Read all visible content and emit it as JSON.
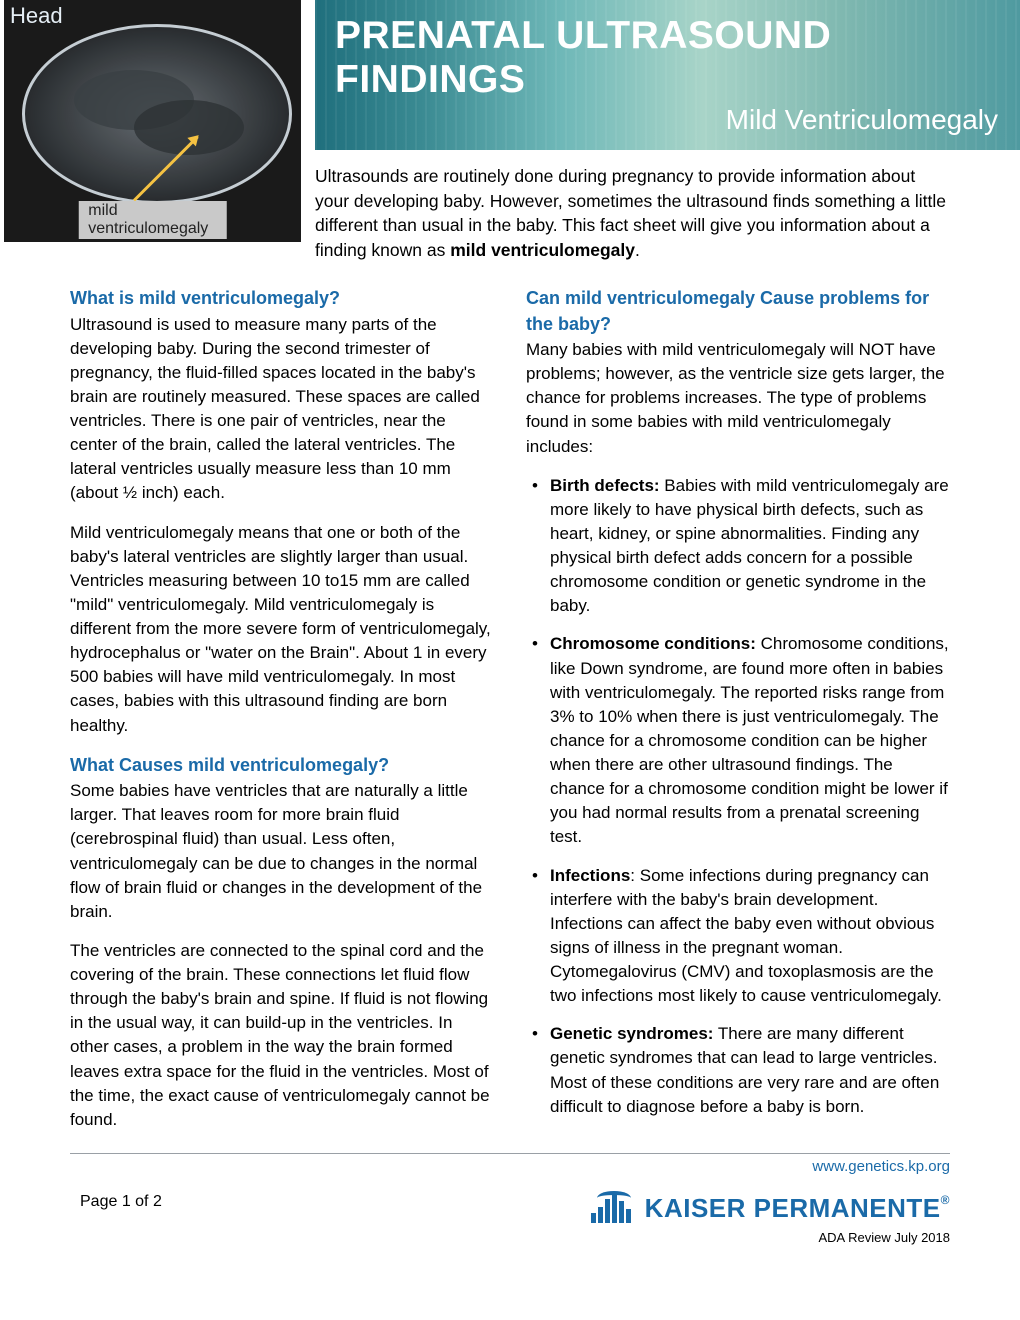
{
  "ultrasound": {
    "head_label": "Head",
    "caption": "mild ventriculomegaly"
  },
  "banner": {
    "title": "PRENATAL ULTRASOUND FINDINGS",
    "subtitle": "Mild Ventriculomegaly",
    "gradient_colors": [
      "#1f6f7d",
      "#3a8a92",
      "#6fb8b8",
      "#a8d4c8",
      "#7fb8b0",
      "#4f9aa0"
    ],
    "title_color": "#ffffff",
    "title_fontsize": 39,
    "subtitle_fontsize": 28
  },
  "intro": {
    "text_before_bold": "Ultrasounds are routinely done during pregnancy to provide information about your developing baby. However, sometimes the ultrasound finds something a little different than usual in the baby. This fact sheet will give you information about a finding known as ",
    "bold": "mild ventriculomegaly",
    "after": "."
  },
  "colors": {
    "heading": "#1a6aa8",
    "body_text": "#000000",
    "background": "#ffffff",
    "rule": "#9aa0a6",
    "logo": "#1a6aa8"
  },
  "typography": {
    "body_fontsize": 17,
    "heading_fontsize": 18,
    "line_height": 1.42
  },
  "left": {
    "h1": "What is mild ventriculomegaly?",
    "p1": "Ultrasound is used to measure many parts of the developing baby. During the second trimester of pregnancy, the fluid-filled spaces located in the baby's brain are routinely measured.  These spaces are called ventricles. There is one pair of ventricles, near the center of the brain, called the lateral ventricles. The lateral ventricles usually measure less than 10 mm (about ½ inch) each.",
    "p2": "Mild ventriculomegaly means that one or both of the baby's lateral ventricles are slightly larger than usual. Ventricles measuring between 10 to15 mm are called \"mild\" ventriculomegaly. Mild ventriculomegaly is different from the more severe form of ventriculomegaly, hydrocephalus or \"water on the Brain\".  About 1 in every 500 babies will have mild ventriculomegaly. In most cases, babies with this ultrasound finding are born healthy.",
    "h2": "What Causes mild ventriculomegaly?",
    "p3": "Some babies have ventricles that are naturally a little larger. That leaves room for more brain fluid (cerebrospinal fluid) than usual.  Less often, ventriculomegaly can be due to changes in the normal flow of brain fluid or changes in the development of the brain.",
    "p4": "The ventricles are connected to the spinal cord and the covering of the brain. These connections let fluid flow through the baby's brain and spine. If fluid is not flowing in the usual way, it can build-up in the ventricles. In other cases, a problem in the way the brain formed leaves extra space for the fluid in the ventricles. Most of the time, the exact cause of ventriculomegaly cannot be found."
  },
  "right": {
    "h1": "Can mild ventriculomegaly Cause problems for the baby?",
    "p1": "Many babies with mild ventriculomegaly will NOT have problems; however, as the ventricle size gets larger, the chance for problems increases. The type of problems found in some babies with mild ventriculomegaly includes:",
    "bullets": [
      {
        "label": "Birth defects:",
        "text": " Babies with mild ventriculomegaly are more likely to have physical birth defects, such as heart, kidney, or spine abnormalities. Finding any physical birth defect adds concern for a possible chromosome condition or genetic syndrome in the baby."
      },
      {
        "label": "Chromosome conditions:",
        "text": " Chromosome conditions, like Down syndrome, are found more often in babies with ventriculomegaly. The reported risks range from 3% to 10% when there is just ventriculomegaly. The chance for a chromosome condition can be higher when there are other ultrasound findings. The chance for a chromosome condition might be lower if you had normal results from a prenatal screening test."
      },
      {
        "label": "Infections",
        "text": ": Some infections during pregnancy can interfere with the baby's brain development. Infections can affect the baby even without obvious signs of illness in the pregnant woman. Cytomegalovirus (CMV) and toxoplasmosis are the two infections most likely to cause ventriculomegaly."
      },
      {
        "label": "Genetic syndromes:",
        "text": " There are many different genetic syndromes that can lead to large ventricles. Most of these conditions are very rare and are often difficult to diagnose before a baby is born."
      }
    ]
  },
  "footer": {
    "url": "www.genetics.kp.org",
    "page": "Page 1 of 2",
    "logo_text": "KAISER PERMANENTE",
    "reg": "®",
    "ada": "ADA Review July 2018"
  }
}
